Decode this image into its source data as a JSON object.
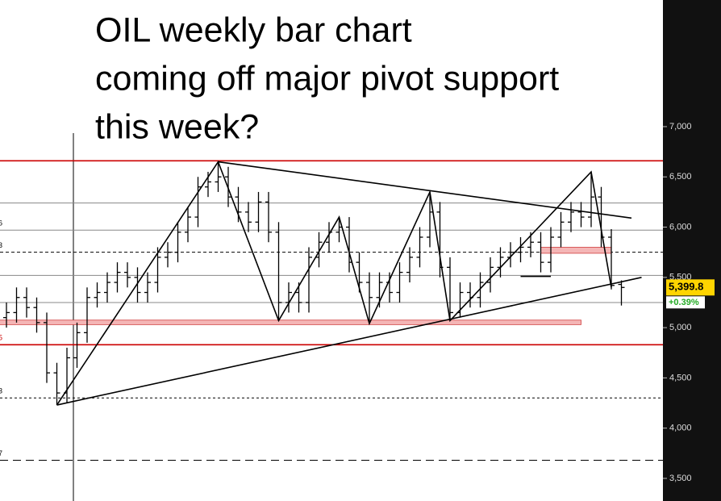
{
  "chart_data": {
    "type": "ohlc",
    "title_lines": [
      "OIL weekly bar chart",
      "coming off major pivot support",
      "this week?"
    ],
    "open": [
      5100,
      5150,
      5300,
      5200,
      5050,
      4550,
      4350,
      4700,
      4950,
      5300,
      5350,
      5450,
      5550,
      5500,
      5350,
      5450,
      5700,
      5750,
      5950,
      6100,
      6400,
      6450,
      6500,
      6300,
      6150,
      6050,
      6250,
      5950,
      5250,
      5350,
      5250,
      5700,
      5850,
      5950,
      6000,
      5650,
      5450,
      5300,
      5450,
      5350,
      5550,
      5700,
      5900,
      6150,
      5600,
      5150,
      5350,
      5300,
      5450,
      5600,
      5700,
      5750,
      5800,
      5850,
      5650,
      5900,
      6050,
      6150,
      6100,
      6300,
      5900,
      5430
    ],
    "high": [
      5250,
      5400,
      5400,
      5300,
      5150,
      4650,
      4800,
      5050,
      5400,
      5450,
      5550,
      5650,
      5650,
      5600,
      5550,
      5800,
      5850,
      6050,
      6200,
      6500,
      6550,
      6650,
      6600,
      6400,
      6250,
      6350,
      6350,
      6050,
      5450,
      5450,
      5800,
      5950,
      6050,
      6100,
      6100,
      5750,
      5550,
      5550,
      5550,
      5650,
      5800,
      6000,
      6350,
      6250,
      5700,
      5450,
      5450,
      5550,
      5700,
      5800,
      5850,
      5900,
      5950,
      5950,
      6000,
      6150,
      6250,
      6250,
      6550,
      6400,
      5980,
      5470
    ],
    "low": [
      5000,
      5050,
      5100,
      4950,
      4450,
      4230,
      4250,
      4600,
      4850,
      5200,
      5250,
      5350,
      5400,
      5250,
      5250,
      5350,
      5600,
      5650,
      5850,
      6000,
      6300,
      6350,
      6200,
      6050,
      5950,
      5950,
      5850,
      5070,
      5150,
      5150,
      5150,
      5600,
      5750,
      5850,
      5550,
      5350,
      5040,
      5200,
      5250,
      5250,
      5450,
      5600,
      5800,
      5500,
      5070,
      5100,
      5200,
      5200,
      5350,
      5500,
      5600,
      5650,
      5700,
      5550,
      5550,
      5800,
      5950,
      6000,
      6000,
      5800,
      5380,
      5220
    ],
    "close": [
      5150,
      5300,
      5200,
      5050,
      4550,
      4350,
      4700,
      4950,
      5300,
      5350,
      5450,
      5550,
      5500,
      5350,
      5450,
      5700,
      5750,
      5950,
      6100,
      6400,
      6450,
      6500,
      6300,
      6150,
      6050,
      6250,
      5950,
      5250,
      5350,
      5250,
      5700,
      5850,
      5950,
      6000,
      5650,
      5450,
      5300,
      5450,
      5350,
      5550,
      5700,
      5900,
      6150,
      5600,
      5150,
      5350,
      5300,
      5450,
      5600,
      5700,
      5750,
      5800,
      5850,
      5650,
      5900,
      6050,
      6150,
      6100,
      6300,
      5900,
      5420,
      5400
    ],
    "color": "#000000",
    "ylim": [
      3275,
      8260
    ],
    "yticks": [
      {
        "value": 3500,
        "label": "3,500"
      },
      {
        "value": 4000,
        "label": "4,000"
      },
      {
        "value": 4500,
        "label": "4,500"
      },
      {
        "value": 5000,
        "label": "5,000"
      },
      {
        "value": 5500,
        "label": "5,500"
      },
      {
        "value": 6000,
        "label": "6,000"
      },
      {
        "value": 6500,
        "label": "6,500"
      },
      {
        "value": 7000,
        "label": "7,000"
      }
    ],
    "levels": [
      {
        "value": 6660,
        "color": "#cc0000",
        "style": "solid"
      },
      {
        "value": 6240,
        "color": "#888888",
        "style": "solid"
      },
      {
        "value": 5970,
        "color": "#888888",
        "style": "solid",
        "label": "6"
      },
      {
        "value": 5750,
        "color": "#000000",
        "style": "dotted",
        "label": "3"
      },
      {
        "value": 5520,
        "color": "#888888",
        "style": "solid"
      },
      {
        "value": 5250,
        "color": "#888888",
        "style": "solid"
      },
      {
        "value": 4830,
        "color": "#cc0000",
        "style": "solid",
        "label": "5"
      },
      {
        "value": 4300,
        "color": "#000000",
        "style": "dashed",
        "label": "3"
      },
      {
        "value": 3680,
        "color": "#000000",
        "style": "longdash",
        "label": "7"
      }
    ],
    "zones": [
      {
        "from": [
          -1,
          5030
        ],
        "to": [
          57,
          5075
        ],
        "color": "#f4b6b6"
      },
      {
        "from": [
          53,
          5740
        ],
        "to": [
          60,
          5800
        ],
        "color": "#f4b6b6"
      }
    ],
    "zigzag": [
      [
        5,
        4230
      ],
      [
        21,
        6650
      ],
      [
        27,
        5070
      ],
      [
        33,
        6100
      ],
      [
        36,
        5040
      ],
      [
        42,
        6350
      ],
      [
        44,
        5070
      ],
      [
        58,
        6550
      ],
      [
        60,
        5400
      ]
    ],
    "trendlines": [
      {
        "from": [
          21,
          6650
        ],
        "to": [
          62,
          6090
        ]
      },
      {
        "from": [
          5,
          4230
        ],
        "to": [
          63,
          5500
        ]
      },
      {
        "from": [
          51,
          5510
        ],
        "to": [
          54,
          5510
        ]
      }
    ],
    "last_price": 5399.8,
    "last_price_label": "5,399.8",
    "change": 0.39,
    "change_label": "+0.39%"
  }
}
